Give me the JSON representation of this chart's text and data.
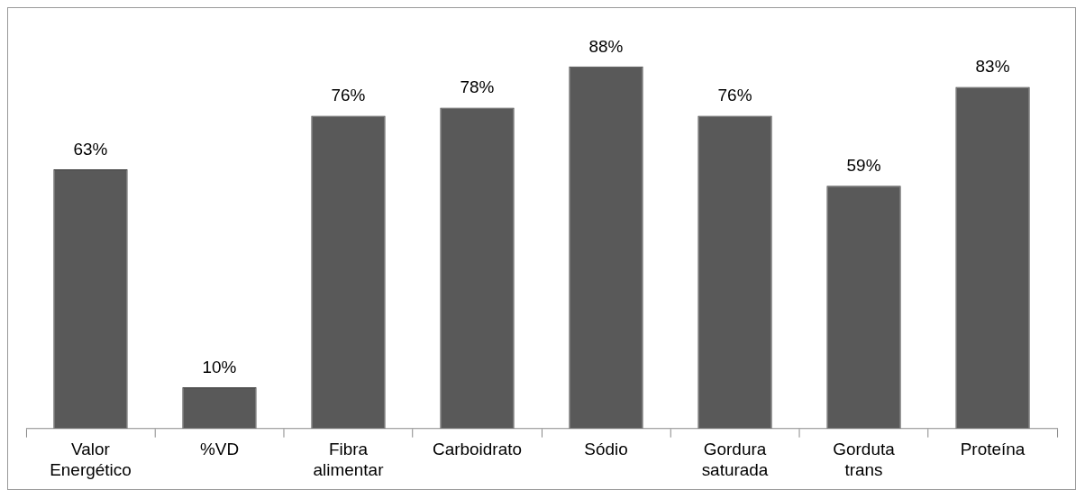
{
  "chart_data": {
    "type": "bar",
    "categories": [
      "Valor Energético",
      "%VD",
      "Fibra alimentar",
      "Carboidrato",
      "Sódio",
      "Gordura saturada",
      "Gorduta trans",
      "Proteína"
    ],
    "values": [
      63,
      10,
      76,
      78,
      88,
      76,
      59,
      83
    ],
    "value_labels": [
      "63%",
      "10%",
      "76%",
      "78%",
      "88%",
      "76%",
      "59%",
      "83%"
    ],
    "color": "#595959",
    "grid": false,
    "legend": false
  }
}
